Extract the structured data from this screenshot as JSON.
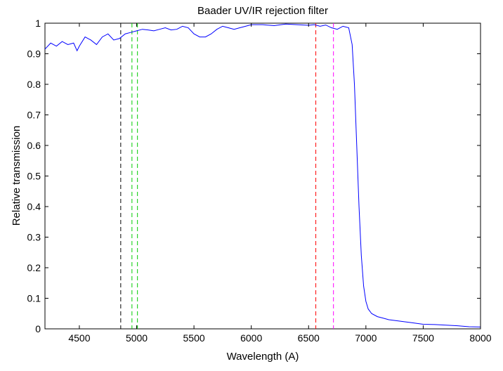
{
  "chart_data": {
    "type": "line",
    "title": "Baader  UV/IR rejection filter",
    "xlabel": "Wavelength (A)",
    "ylabel": "Relative transmission",
    "xlim": [
      4200,
      8000
    ],
    "ylim": [
      0,
      1
    ],
    "xticks": [
      4500,
      5000,
      5500,
      6000,
      6500,
      7000,
      7500,
      8000
    ],
    "yticks": [
      0,
      0.1,
      0.2,
      0.3,
      0.4,
      0.5,
      0.6,
      0.7,
      0.8,
      0.9,
      1
    ],
    "ytick_labels": [
      "0",
      "0.1",
      "0.2",
      "0.3",
      "0.4",
      "0.5",
      "0.6",
      "0.7",
      "0.8",
      "0.9",
      "1"
    ],
    "grid": false,
    "series": [
      {
        "color": "#0000ff",
        "x": [
          4200,
          4250,
          4300,
          4350,
          4400,
          4450,
          4480,
          4500,
          4550,
          4600,
          4650,
          4700,
          4750,
          4800,
          4850,
          4900,
          4950,
          5000,
          5050,
          5100,
          5150,
          5200,
          5250,
          5300,
          5350,
          5400,
          5450,
          5500,
          5550,
          5600,
          5650,
          5700,
          5750,
          5800,
          5850,
          5900,
          5950,
          6000,
          6100,
          6200,
          6300,
          6400,
          6500,
          6550,
          6600,
          6650,
          6700,
          6750,
          6800,
          6850,
          6880,
          6900,
          6920,
          6940,
          6960,
          6980,
          7000,
          7020,
          7050,
          7100,
          7150,
          7200,
          7300,
          7400,
          7500,
          7600,
          7700,
          7800,
          7900,
          8000
        ],
        "y": [
          0.915,
          0.935,
          0.925,
          0.94,
          0.93,
          0.935,
          0.91,
          0.925,
          0.955,
          0.945,
          0.93,
          0.955,
          0.965,
          0.945,
          0.95,
          0.965,
          0.97,
          0.975,
          0.98,
          0.978,
          0.975,
          0.98,
          0.985,
          0.978,
          0.98,
          0.99,
          0.985,
          0.965,
          0.955,
          0.955,
          0.965,
          0.98,
          0.99,
          0.985,
          0.98,
          0.985,
          0.99,
          0.995,
          0.995,
          0.992,
          0.997,
          0.995,
          0.993,
          0.995,
          0.99,
          0.994,
          0.985,
          0.98,
          0.99,
          0.985,
          0.93,
          0.8,
          0.6,
          0.4,
          0.24,
          0.14,
          0.09,
          0.065,
          0.05,
          0.04,
          0.035,
          0.03,
          0.025,
          0.02,
          0.015,
          0.014,
          0.012,
          0.01,
          0.007,
          0.006
        ]
      }
    ],
    "vlines": [
      {
        "x": 4861,
        "color": "#000000"
      },
      {
        "x": 4959,
        "color": "#00cc00"
      },
      {
        "x": 5007,
        "color": "#00cc00"
      },
      {
        "x": 6563,
        "color": "#ff0000"
      },
      {
        "x": 6717,
        "color": "#ff00ff"
      }
    ]
  }
}
